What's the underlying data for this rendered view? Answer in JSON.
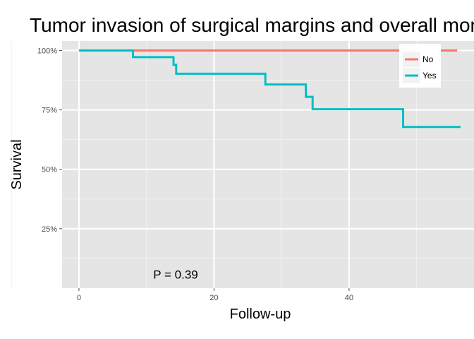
{
  "chart_data": {
    "type": "line",
    "title": "Tumor invasion of surgical margins and overall mortality",
    "xlabel": "Follow-up",
    "ylabel": "Survival",
    "xlim": [
      -2.5,
      58.5
    ],
    "ylim": [
      0.0,
      1.04
    ],
    "x_ticks": [
      0,
      20,
      40
    ],
    "y_ticks": [
      0.25,
      0.5,
      0.75,
      1.0
    ],
    "x_tick_labels": [
      "0",
      "20",
      "40"
    ],
    "y_tick_labels": [
      "25%",
      "50%",
      "75%",
      "100%"
    ],
    "step": true,
    "grid": true,
    "legend_position": "top-right",
    "series": [
      {
        "name": "No",
        "color": "#F8766D",
        "x": [
          0,
          56
        ],
        "y": [
          1.0,
          1.0
        ]
      },
      {
        "name": "Yes",
        "color": "#00BFC4",
        "x": [
          0,
          8,
          14,
          14.4,
          27.6,
          33.6,
          34.6,
          48,
          56.5
        ],
        "y": [
          1.0,
          0.972,
          0.94,
          0.902,
          0.857,
          0.805,
          0.753,
          0.678,
          0.678
        ]
      }
    ],
    "annotations": [
      {
        "text": "P = 0.39",
        "x": 11,
        "y": 0.04
      }
    ]
  }
}
